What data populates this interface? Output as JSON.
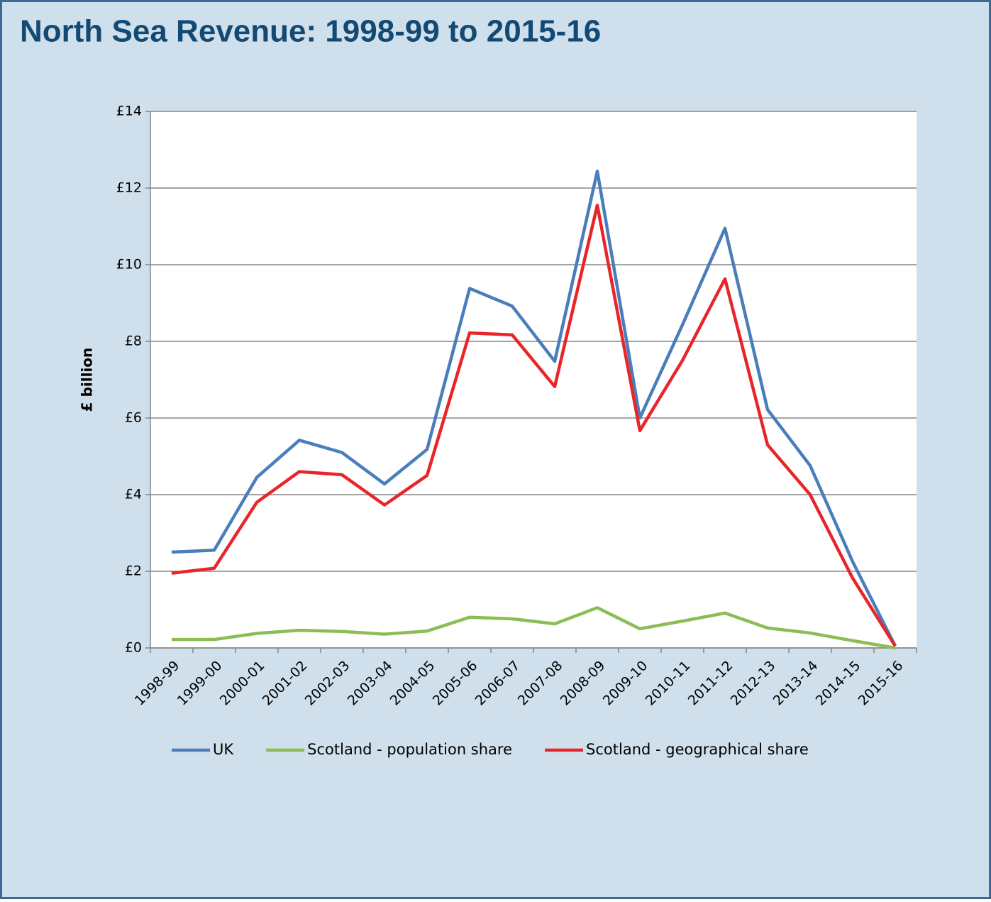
{
  "chart_data": {
    "type": "line",
    "title": "North Sea Revenue: 1998-99 to 2015-16",
    "y_label": "£ billion",
    "categories": [
      "1998-99",
      "1999-00",
      "2000-01",
      "2001-02",
      "2002-03",
      "2003-04",
      "2004-05",
      "2005-06",
      "2006-07",
      "2007-08",
      "2008-09",
      "2009-10",
      "2010-11",
      "2011-12",
      "2012-13",
      "2013-14",
      "2014-15",
      "2015-16"
    ],
    "series": [
      {
        "name": "UK",
        "color": "#4a7ebb",
        "values": [
          2.5,
          2.55,
          4.45,
          5.42,
          5.1,
          4.28,
          5.18,
          9.38,
          8.92,
          7.48,
          12.44,
          6.0,
          8.43,
          10.95,
          6.22,
          4.76,
          2.25,
          0.05
        ]
      },
      {
        "name": "Scotland - population share",
        "color": "#8cbd55",
        "values": [
          0.22,
          0.22,
          0.38,
          0.46,
          0.43,
          0.36,
          0.44,
          0.8,
          0.76,
          0.63,
          1.05,
          0.5,
          0.7,
          0.91,
          0.52,
          0.39,
          0.19,
          0.0
        ]
      },
      {
        "name": "Scotland - geographical share",
        "color": "#e8262a",
        "values": [
          1.95,
          2.08,
          3.8,
          4.6,
          4.52,
          3.73,
          4.5,
          8.22,
          8.17,
          6.82,
          11.55,
          5.67,
          7.5,
          9.63,
          5.3,
          4.0,
          1.82,
          0.05
        ]
      }
    ],
    "ylim": [
      0,
      14
    ],
    "yticks": [
      {
        "value": 0,
        "label": "£0"
      },
      {
        "value": 2,
        "label": "£2"
      },
      {
        "value": 4,
        "label": "£4"
      },
      {
        "value": 6,
        "label": "£6"
      },
      {
        "value": 8,
        "label": "£8"
      },
      {
        "value": 10,
        "label": "£10"
      },
      {
        "value": 12,
        "label": "£12"
      },
      {
        "value": 14,
        "label": "£14"
      }
    ],
    "grid": true
  }
}
